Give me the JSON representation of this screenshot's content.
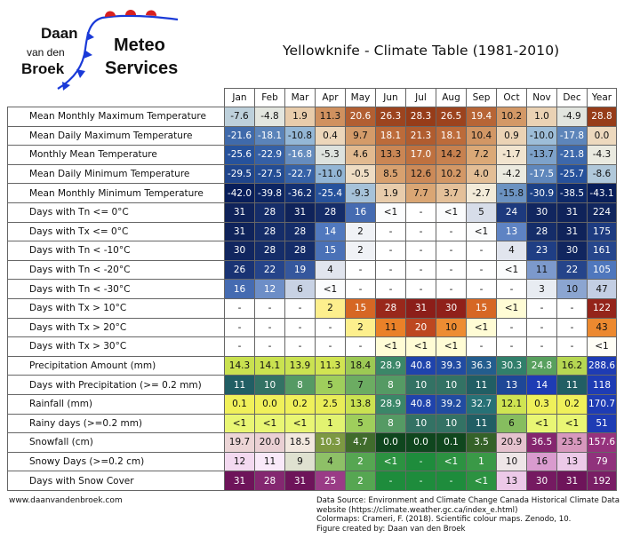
{
  "logo": {
    "name_line1": "Daan",
    "name_line2": "van den",
    "name_line3": "Broek",
    "brand_line1": "Meteo",
    "brand_line2": "Services"
  },
  "title": "Yellowknife - Climate Table (1981-2010)",
  "chart_data": {
    "type": "table",
    "title": "Yellowknife - Climate Table (1981-2010)",
    "columns": [
      "Jan",
      "Feb",
      "Mar",
      "Apr",
      "May",
      "Jun",
      "Jul",
      "Aug",
      "Sep",
      "Oct",
      "Nov",
      "Dec",
      "Year"
    ],
    "rows": [
      {
        "label": "Mean Monthly Maximum Temperature",
        "scale": "temp",
        "values": [
          "-7.6",
          "-4.8",
          "1.9",
          "11.3",
          "20.6",
          "26.3",
          "28.3",
          "26.5",
          "19.4",
          "10.2",
          "1.0",
          "-4.9",
          "28.8"
        ]
      },
      {
        "label": "Mean Daily Maximum Temperature",
        "scale": "temp",
        "values": [
          "-21.6",
          "-18.1",
          "-10.8",
          "0.4",
          "9.7",
          "18.1",
          "21.3",
          "18.1",
          "10.4",
          "0.9",
          "-10.0",
          "-17.8",
          "0.0"
        ]
      },
      {
        "label": "Monthly Mean Temperature",
        "scale": "temp",
        "values": [
          "-25.6",
          "-22.9",
          "-16.8",
          "-5.3",
          "4.6",
          "13.3",
          "17.0",
          "14.2",
          "7.2",
          "-1.7",
          "-13.7",
          "-21.8",
          "-4.3"
        ]
      },
      {
        "label": "Mean Daily Minimum Temperature",
        "scale": "temp",
        "values": [
          "-29.5",
          "-27.5",
          "-22.7",
          "-11.0",
          "-0.5",
          "8.5",
          "12.6",
          "10.2",
          "4.0",
          "-4.2",
          "-17.5",
          "-25.7",
          "-8.6"
        ]
      },
      {
        "label": "Mean Monthly Minimum Temperature",
        "scale": "temp",
        "values": [
          "-42.0",
          "-39.8",
          "-36.2",
          "-25.4",
          "-9.3",
          "1.9",
          "7.7",
          "3.7",
          "-2.7",
          "-15.8",
          "-30.9",
          "-38.5",
          "-43.1"
        ]
      },
      {
        "label": "Days with Tn <= 0°C",
        "scale": "cold",
        "values": [
          "31",
          "28",
          "31",
          "28",
          "16",
          "<1",
          "-",
          "<1",
          "5",
          "24",
          "30",
          "31",
          "224"
        ]
      },
      {
        "label": "Days with Tx <= 0°C",
        "scale": "cold",
        "values": [
          "31",
          "28",
          "28",
          "14",
          "2",
          "-",
          "-",
          "-",
          "<1",
          "13",
          "28",
          "31",
          "175"
        ]
      },
      {
        "label": "Days with Tn < -10°C",
        "scale": "cold",
        "values": [
          "30",
          "28",
          "28",
          "15",
          "2",
          "-",
          "-",
          "-",
          "-",
          "4",
          "23",
          "30",
          "161"
        ]
      },
      {
        "label": "Days with Tn < -20°C",
        "scale": "cold",
        "values": [
          "26",
          "22",
          "19",
          "4",
          "-",
          "-",
          "-",
          "-",
          "-",
          "<1",
          "11",
          "22",
          "105"
        ]
      },
      {
        "label": "Days with Tn < -30°C",
        "scale": "cold",
        "values": [
          "16",
          "12",
          "6",
          "<1",
          "-",
          "-",
          "-",
          "-",
          "-",
          "-",
          "3",
          "10",
          "47"
        ]
      },
      {
        "label": "Days with Tx > 10°C",
        "scale": "hot",
        "values": [
          "-",
          "-",
          "-",
          "2",
          "15",
          "28",
          "31",
          "30",
          "15",
          "<1",
          "-",
          "-",
          "122"
        ]
      },
      {
        "label": "Days with Tx > 20°C",
        "scale": "hot",
        "values": [
          "-",
          "-",
          "-",
          "-",
          "2",
          "11",
          "20",
          "10",
          "<1",
          "-",
          "-",
          "-",
          "43"
        ]
      },
      {
        "label": "Days with Tx > 30°C",
        "scale": "hot",
        "values": [
          "-",
          "-",
          "-",
          "-",
          "-",
          "<1",
          "<1",
          "<1",
          "-",
          "-",
          "-",
          "-",
          "<1"
        ]
      },
      {
        "label": "Precipitation Amount (mm)",
        "scale": "precip",
        "values": [
          "14.3",
          "14.1",
          "13.9",
          "11.3",
          "18.4",
          "28.9",
          "40.8",
          "39.3",
          "36.3",
          "30.3",
          "24.8",
          "16.2",
          "288.6"
        ]
      },
      {
        "label": "Days with Precipitation (>= 0.2 mm)",
        "scale": "precipdays",
        "values": [
          "11",
          "10",
          "8",
          "5",
          "7",
          "8",
          "10",
          "10",
          "11",
          "13",
          "14",
          "11",
          "118"
        ]
      },
      {
        "label": "Rainfall (mm)",
        "scale": "precip",
        "values": [
          "0.1",
          "0.0",
          "0.2",
          "2.5",
          "13.8",
          "28.9",
          "40.8",
          "39.2",
          "32.7",
          "12.1",
          "0.3",
          "0.2",
          "170.7"
        ]
      },
      {
        "label": "Rainy days (>=0.2 mm)",
        "scale": "precipdays",
        "values": [
          "<1",
          "<1",
          "<1",
          "1",
          "5",
          "8",
          "10",
          "10",
          "11",
          "6",
          "<1",
          "<1",
          "51"
        ]
      },
      {
        "label": "Snowfall (cm)",
        "scale": "snow",
        "values": [
          "19.7",
          "20.0",
          "18.5",
          "10.3",
          "4.7",
          "0.0",
          "0.0",
          "0.1",
          "3.5",
          "20.9",
          "36.5",
          "23.5",
          "157.6"
        ]
      },
      {
        "label": "Snowy Days (>=0.2 cm)",
        "scale": "snowdays",
        "values": [
          "12",
          "11",
          "9",
          "4",
          "2",
          "<1",
          "-",
          "<1",
          "1",
          "10",
          "16",
          "13",
          "79"
        ]
      },
      {
        "label": "Days with Snow Cover",
        "scale": "snowdays",
        "values": [
          "31",
          "28",
          "31",
          "25",
          "2",
          "-",
          "-",
          "-",
          "<1",
          "13",
          "30",
          "31",
          "192"
        ]
      }
    ]
  },
  "website": "www.daanvandenbroek.com",
  "source_lines": {
    "l1": "Data Source: Environment and Climate Change Canada Historical Climate Data",
    "l2": "website (https://climate.weather.gc.ca/index_e.html)",
    "l3": "Colormaps: Crameri, F. (2018). Scientific colour maps. Zenodo, 10.",
    "l4": "Figure created by: Daan van den Broek"
  },
  "colors": {
    "logo_red": "#d82020",
    "logo_blue": "#1a3ad8"
  }
}
